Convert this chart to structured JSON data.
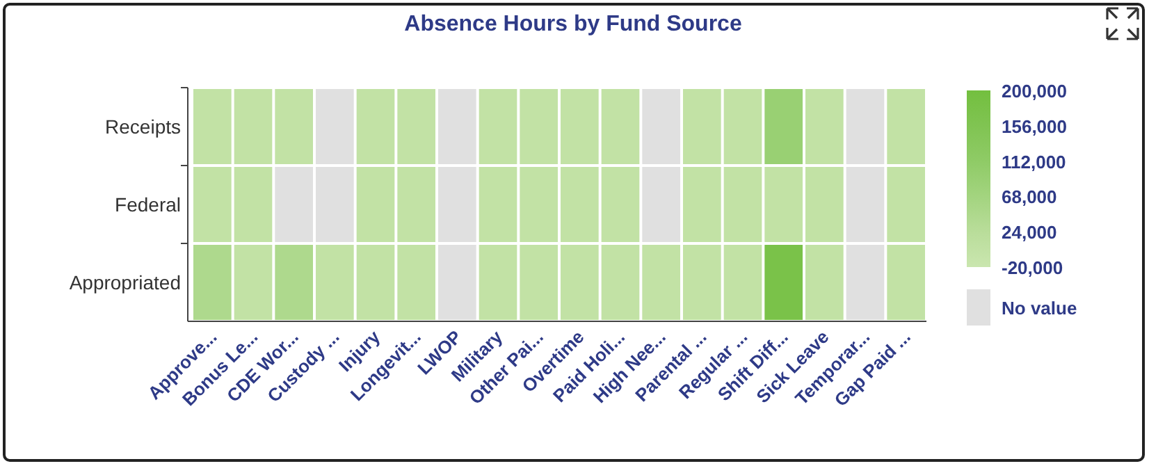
{
  "chart_data": {
    "type": "heatmap",
    "title": "Absence Hours by Fund Source",
    "categories": [
      "Approve...",
      "Bonus Le...",
      "CDE Wor...",
      "Custody ...",
      "Injury",
      "Longevit...",
      "LWOP",
      "Military",
      "Other Pai...",
      "Overtime",
      "Paid Holi...",
      "High Nee...",
      "Parental ...",
      "Regular ...",
      "Shift Diff...",
      "Sick Leave",
      "Temporar...",
      "Gap Paid ..."
    ],
    "y_categories": [
      "Receipts",
      "Federal",
      "Appropriated"
    ],
    "cells": [
      [
        2000,
        2000,
        2000,
        null,
        2000,
        2000,
        null,
        2000,
        2000,
        2000,
        2000,
        null,
        2000,
        2000,
        90000,
        2000,
        null,
        2000
      ],
      [
        2000,
        2000,
        null,
        null,
        2000,
        2000,
        null,
        2000,
        2000,
        2000,
        2000,
        null,
        2000,
        2000,
        2000,
        2000,
        null,
        2000
      ],
      [
        46000,
        2000,
        46000,
        2000,
        2000,
        2000,
        null,
        2000,
        2000,
        2000,
        2000,
        2000,
        2000,
        2000,
        178000,
        2000,
        null,
        2000
      ]
    ],
    "clim": [
      -20000,
      200000
    ],
    "cticks": [
      {
        "value": -20000,
        "label": "-20,000"
      },
      {
        "value": 24000,
        "label": "24,000"
      },
      {
        "value": 68000,
        "label": "68,000"
      },
      {
        "value": 112000,
        "label": "112,000"
      },
      {
        "value": 156000,
        "label": "156,000"
      },
      {
        "value": 200000,
        "label": "200,000"
      }
    ],
    "colors": [
      "#cae6af",
      "#b9dd9a",
      "#a3d47f",
      "#8fcb66",
      "#80c452",
      "#73bf3f"
    ],
    "annotations": [
      "No value"
    ]
  }
}
